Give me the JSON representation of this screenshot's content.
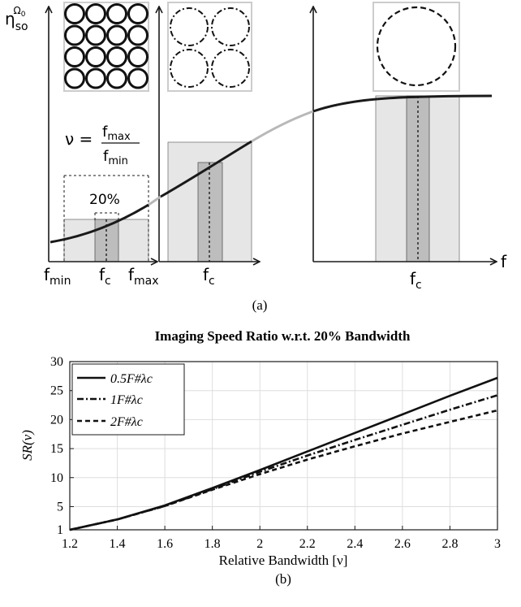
{
  "panel_a": {
    "y_label_main": "η",
    "y_label_sub": "so",
    "y_label_sup": "Ω",
    "y_label_sup_sub": "0",
    "x_axis_label": "f",
    "nu_lhs": "ν =",
    "nu_num": "f",
    "nu_num_sub": "max",
    "nu_den": "f",
    "nu_den_sub": "min",
    "pct_label": "20%",
    "left_labels": [
      {
        "main": "f",
        "sub": "min"
      },
      {
        "main": "f",
        "sub": "c"
      },
      {
        "main": "f",
        "sub": "max"
      }
    ],
    "mid_label": {
      "main": "f",
      "sub": "c"
    },
    "right_label": {
      "main": "f",
      "sub": "c"
    },
    "caption": "(a)",
    "colors": {
      "band_fill": "#e6e6e6",
      "center_fill": "#bdbdbd",
      "curve": "#1a1a1a",
      "gap_curve": "#b8b8b8",
      "inset_border": "#cccccc"
    }
  },
  "panel_b": {
    "caption": "(b)"
  },
  "chart_data": {
    "type": "line",
    "title": "Imaging Speed Ratio w.r.t. 20% Bandwidth",
    "xlabel": "Relative Bandwidth [ν]",
    "ylabel": "SR(ν)",
    "xlim": [
      1.2,
      3.0
    ],
    "ylim": [
      1,
      30
    ],
    "xticks": [
      "1.2",
      "1.4",
      "1.6",
      "1.8",
      "2",
      "2.2",
      "2.4",
      "2.6",
      "2.8",
      "3"
    ],
    "yticks": [
      "1",
      "5",
      "10",
      "15",
      "20",
      "25",
      "30"
    ],
    "grid": true,
    "legend_position": "top-left",
    "series": [
      {
        "name": "0.5F#λc",
        "style": "solid",
        "x": [
          1.2,
          1.4,
          1.6,
          1.8,
          2.0,
          2.2,
          2.4,
          2.6,
          2.8,
          3.0
        ],
        "y": [
          1.0,
          2.8,
          5.2,
          8.2,
          11.3,
          14.5,
          17.7,
          20.9,
          24.1,
          27.2
        ]
      },
      {
        "name": "1F#λc",
        "style": "dashdot",
        "x": [
          1.2,
          1.4,
          1.6,
          1.8,
          2.0,
          2.2,
          2.4,
          2.6,
          2.8,
          3.0
        ],
        "y": [
          1.0,
          2.8,
          5.1,
          8.0,
          11.0,
          13.8,
          16.5,
          19.1,
          21.7,
          24.2
        ]
      },
      {
        "name": "2F#λc",
        "style": "dashed",
        "x": [
          1.2,
          1.4,
          1.6,
          1.8,
          2.0,
          2.2,
          2.4,
          2.6,
          2.8,
          3.0
        ],
        "y": [
          1.0,
          2.8,
          5.1,
          7.9,
          10.6,
          13.1,
          15.4,
          17.6,
          19.6,
          21.6
        ]
      }
    ]
  }
}
